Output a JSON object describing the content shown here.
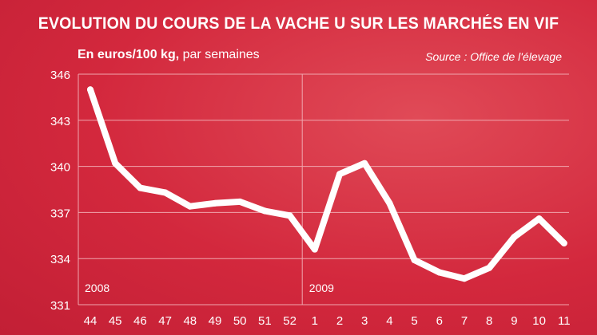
{
  "title": "EVOLUTION DU COURS DE LA VACHE U SUR LES MARCHÉS EN VIF",
  "subtitle_bold": "En euros/100 kg,",
  "subtitle_rest": " par semaines",
  "source": "Source : Office de l'élevage",
  "colors": {
    "background": "#d3283d",
    "line": "#ffffff",
    "grid": "#f0a6ae"
  },
  "chart_data": {
    "type": "line",
    "categories": [
      "44",
      "45",
      "46",
      "47",
      "48",
      "49",
      "50",
      "51",
      "52",
      "1",
      "2",
      "3",
      "4",
      "5",
      "6",
      "7",
      "8",
      "9",
      "10",
      "11"
    ],
    "values": [
      345.0,
      340.2,
      338.6,
      338.3,
      337.4,
      337.6,
      337.7,
      337.1,
      336.8,
      334.6,
      339.5,
      340.2,
      337.6,
      333.9,
      333.1,
      332.7,
      333.4,
      335.4,
      336.6,
      335.0
    ],
    "ylim": [
      331,
      346
    ],
    "yticks": [
      331,
      334,
      337,
      340,
      343,
      346
    ],
    "year_labels": [
      {
        "label": "2008",
        "at_category": "44"
      },
      {
        "label": "2009",
        "at_category": "1"
      }
    ],
    "year_divider_before": "1",
    "grid": true,
    "legend": "none"
  }
}
